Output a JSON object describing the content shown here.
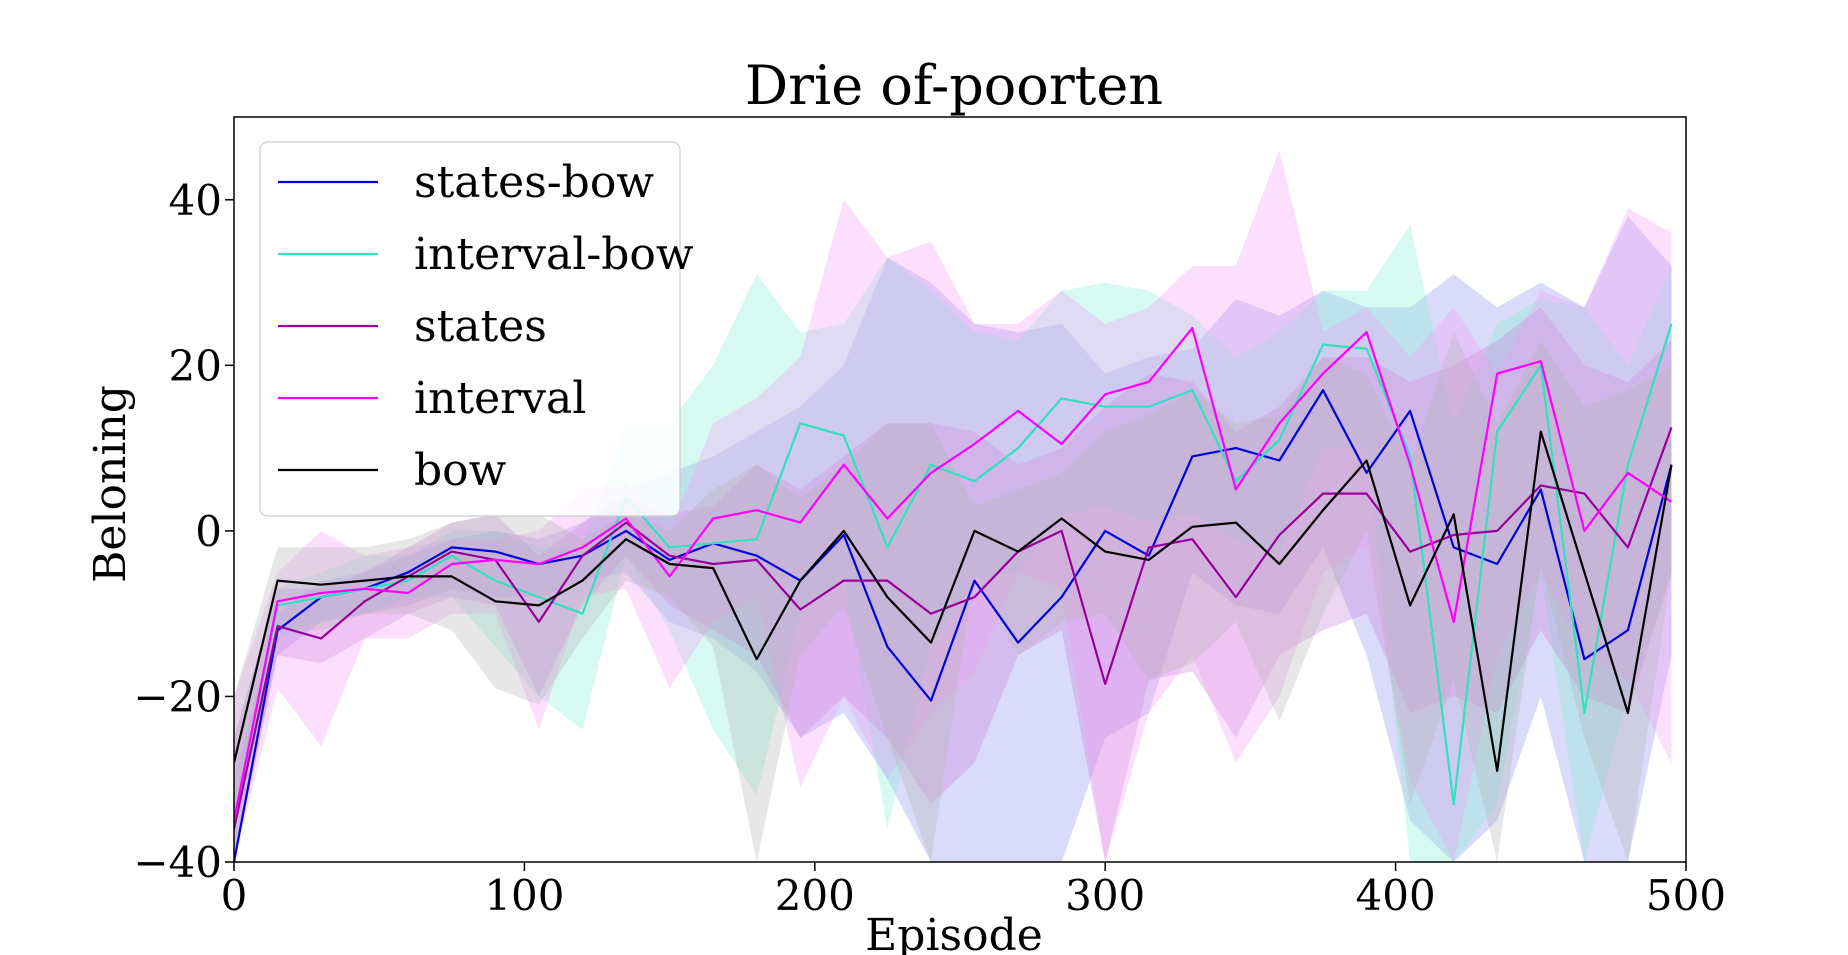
{
  "chart_data": {
    "type": "line",
    "title": "Drie of-poorten",
    "xlabel": "Episode",
    "ylabel": "Beloning",
    "xlim": [
      0,
      500
    ],
    "ylim": [
      -40,
      50
    ],
    "xticks": [
      0,
      100,
      200,
      300,
      400,
      500
    ],
    "yticks": [
      -40,
      -20,
      0,
      20,
      40
    ],
    "xtick_labels": [
      "0",
      "100",
      "200",
      "300",
      "400",
      "500"
    ],
    "ytick_labels": [
      "−40",
      "−20",
      "0",
      "20",
      "40"
    ],
    "legend_position": "upper-left",
    "grid": false,
    "x": [
      0,
      15,
      30,
      45,
      60,
      75,
      90,
      105,
      120,
      135,
      150,
      165,
      180,
      195,
      210,
      225,
      240,
      255,
      270,
      285,
      300,
      315,
      330,
      345,
      360,
      375,
      390,
      405,
      420,
      435,
      450,
      465,
      480,
      495
    ],
    "series": [
      {
        "name": "states-bow",
        "color": "#0000dd",
        "fill": "#8c8cf0",
        "values": [
          -40,
          -12,
          -8,
          -7,
          -5,
          -2,
          -2.5,
          -4,
          -3,
          0,
          -3.5,
          -1.5,
          -3,
          -6,
          -0.5,
          -14,
          -20.5,
          -6,
          -13.5,
          -8,
          0,
          -3,
          9,
          10,
          8.5,
          17,
          7,
          14.5,
          -2,
          -4,
          5,
          -15.5,
          -12,
          8
        ],
        "upper": [
          -30,
          -10,
          -6,
          -5,
          -3,
          -1,
          0,
          -1,
          1,
          5,
          7,
          9,
          12,
          15,
          20,
          33,
          30,
          25,
          24,
          25,
          19,
          21,
          22,
          28,
          26,
          29,
          27,
          27,
          31,
          27,
          30,
          27,
          38,
          32
        ],
        "lower": [
          -40,
          -15,
          -11,
          -10,
          -9,
          -7,
          -8,
          -8,
          -6,
          -5,
          -11,
          -13,
          -17,
          -25,
          -22,
          -30,
          -40,
          -40,
          -40,
          -40,
          -25,
          -22,
          -5,
          -9,
          -10,
          -2,
          -15,
          -35,
          -40,
          -35,
          -20,
          -40,
          -40,
          -15
        ]
      },
      {
        "name": "interval-bow",
        "color": "#33e0c0",
        "fill": "#80f0d4",
        "values": [
          -35,
          -9,
          -8,
          -7,
          -6,
          -3,
          -6,
          -8,
          -10,
          4,
          -2,
          -1.5,
          -1,
          13,
          11.5,
          -2,
          8,
          6,
          10,
          16,
          15,
          15,
          17,
          6,
          11,
          22.5,
          22,
          9,
          -33,
          12,
          20,
          -22,
          8,
          25
        ],
        "upper": [
          -25,
          -7,
          -5,
          -3,
          -3,
          0,
          0,
          -2,
          -2,
          13,
          13,
          20,
          31,
          24,
          25,
          33,
          29,
          24,
          23,
          29,
          30,
          29,
          26,
          21,
          24,
          29,
          29,
          37,
          13,
          25,
          28,
          27,
          20,
          32
        ],
        "lower": [
          -40,
          -13,
          -11,
          -10,
          -8,
          -8,
          -14,
          -20,
          -24,
          -3,
          -12,
          -24,
          -32,
          -10,
          -6,
          -36,
          -14,
          -6,
          -5,
          2,
          3,
          1,
          2,
          -1,
          -3,
          10,
          10,
          -40,
          -40,
          -33,
          -5,
          -40,
          -20,
          -5
        ]
      },
      {
        "name": "states",
        "color": "#990099",
        "fill": "#c880d8",
        "values": [
          -36,
          -11.5,
          -13,
          -8.5,
          -5.5,
          -2.5,
          -3.5,
          -11,
          -3,
          1,
          -3,
          -4,
          -3.5,
          -9.5,
          -6,
          -6,
          -10,
          -8,
          -2.5,
          0,
          -18.5,
          -2,
          -1,
          -8,
          -0.5,
          4.5,
          4.5,
          -2.5,
          -0.5,
          0,
          5.5,
          4.5,
          -2,
          12.5
        ],
        "upper": [
          -25,
          -7,
          -7,
          -5,
          -2,
          1,
          2,
          -3,
          1,
          4,
          2,
          3,
          8,
          5,
          9,
          13,
          13,
          12,
          8,
          10,
          15,
          19,
          18,
          12,
          15,
          21,
          21,
          18,
          20,
          23,
          27,
          20,
          18,
          23
        ],
        "lower": [
          -40,
          -15,
          -16,
          -13,
          -10,
          -8,
          -9,
          -20,
          -9,
          -3,
          -9,
          -12,
          -15,
          -25,
          -20,
          -25,
          -33,
          -28,
          -15,
          -12,
          -40,
          -18,
          -17,
          -25,
          -15,
          -12,
          -10,
          -22,
          -20,
          -22,
          -12,
          -20,
          -22,
          -5
        ]
      },
      {
        "name": "interval",
        "color": "#ff00ff",
        "fill": "#f49cf6",
        "values": [
          -35,
          -8.5,
          -7.5,
          -7,
          -7.5,
          -4,
          -3.5,
          -4,
          -2,
          1.5,
          -5.5,
          1.5,
          2.5,
          1,
          8,
          1.5,
          7,
          10.5,
          14.5,
          10.5,
          16.5,
          18,
          24.5,
          5,
          13,
          19,
          24,
          8,
          -11,
          19,
          20.5,
          0,
          7,
          3.5
        ],
        "upper": [
          -20,
          -5,
          0,
          -3,
          -2,
          -1,
          -1,
          0,
          5,
          6,
          0,
          13,
          16,
          21,
          40,
          33,
          35,
          25,
          25,
          29,
          25,
          27,
          32,
          32,
          46,
          24,
          27,
          21,
          27,
          19,
          29,
          27,
          39,
          36
        ],
        "lower": [
          -40,
          -19,
          -26,
          -13,
          -13,
          -10,
          -10,
          -24,
          -8,
          -7,
          -19,
          -11,
          -8,
          -31,
          -20,
          -30,
          -22,
          -17,
          -5,
          -7,
          -40,
          -22,
          -15,
          -28,
          -20,
          -5,
          -2,
          -30,
          -40,
          -15,
          -5,
          -15,
          -18,
          -28
        ]
      },
      {
        "name": "bow",
        "color": "#000000",
        "fill": "#b4b4b4",
        "values": [
          -28,
          -6,
          -6.5,
          -6,
          -5.5,
          -5.5,
          -8.5,
          -9,
          -6,
          -1,
          -4,
          -4.5,
          -15.5,
          -6,
          0,
          -8,
          -13.5,
          0,
          -2.5,
          1.5,
          -2.5,
          -3.5,
          0.5,
          1,
          -4,
          2.5,
          8.5,
          -9,
          2,
          -29,
          12,
          -5,
          -22,
          8
        ],
        "upper": [
          -20,
          -2,
          -2,
          -2,
          -1,
          1,
          2,
          2,
          -1,
          2,
          0,
          5,
          8,
          4,
          8,
          13,
          13,
          3,
          5,
          7,
          12,
          14,
          17,
          13,
          14,
          21,
          19,
          8,
          24,
          13,
          23,
          15,
          17,
          20
        ],
        "lower": [
          -35,
          -12,
          -12,
          -10,
          -10,
          -12,
          -19,
          -21,
          -13,
          -6,
          -8,
          -14,
          -40,
          -15,
          -9,
          -25,
          -40,
          -5,
          -15,
          -11,
          -10,
          -18,
          -16,
          -11,
          -23,
          -10,
          0,
          -33,
          -18,
          -40,
          -4,
          -25,
          -40,
          -5
        ]
      }
    ]
  }
}
